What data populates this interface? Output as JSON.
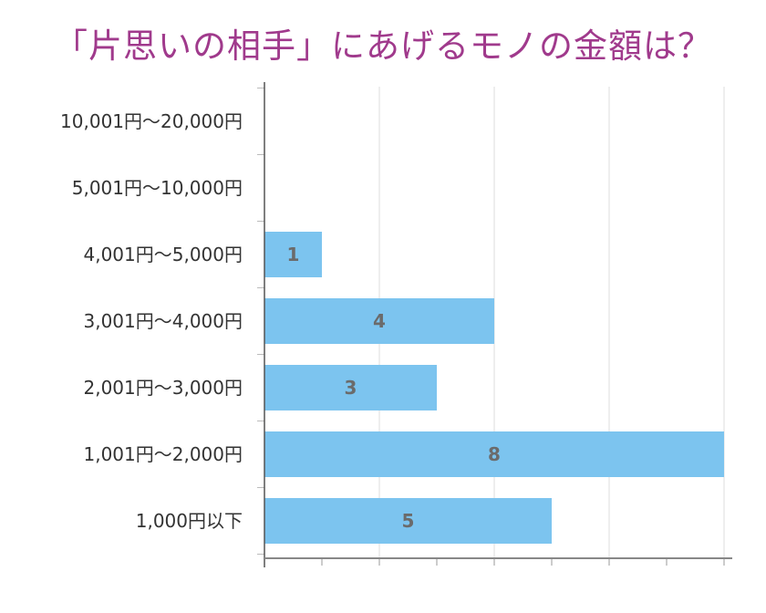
{
  "chart_data": {
    "type": "bar",
    "orientation": "horizontal",
    "title": "「片思いの相手」にあげるモノの金額は？",
    "categories": [
      "10,001円〜20,000円",
      "5,001円〜10,000円",
      "4,001円〜5,000円",
      "3,001円〜4,000円",
      "2,001円〜3,000円",
      "1,001円〜2,000円",
      "1,000円以下"
    ],
    "values": [
      0,
      0,
      1,
      4,
      3,
      8,
      5
    ],
    "xlim": [
      0,
      8.2
    ],
    "grid": true,
    "colors": {
      "bar": "#7cc4ef",
      "title": "#a03a8c",
      "value_label": "#6b6b6b"
    }
  }
}
